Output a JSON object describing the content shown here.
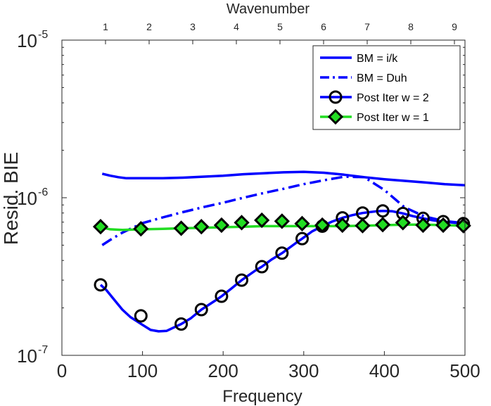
{
  "chart_data": {
    "type": "line",
    "title": "",
    "xlabel": "Frequency",
    "ylabel": "Resid. BIE",
    "top_xlabel": "Wavenumber",
    "xlim": [
      0,
      500
    ],
    "ylim": [
      1e-07,
      1e-05
    ],
    "yscale": "log",
    "x_ticks": [
      0,
      100,
      200,
      300,
      400,
      500
    ],
    "x_tick_labels": [
      "0",
      "100",
      "200",
      "300",
      "400",
      "500"
    ],
    "y_ticks": [
      1e-07,
      1e-06,
      1e-05
    ],
    "y_tick_labels": [
      {
        "base": "10",
        "exp": "-7"
      },
      {
        "base": "10",
        "exp": "-6"
      },
      {
        "base": "10",
        "exp": "-5"
      }
    ],
    "top_ticks": [
      1,
      2,
      3,
      4,
      5,
      6,
      7,
      8,
      9
    ],
    "top_tick_labels": [
      "1",
      "2",
      "3",
      "4",
      "5",
      "6",
      "7",
      "8",
      "9"
    ],
    "frequency_per_wavenumber": 54.1,
    "grid": false,
    "legend_position": "top-right",
    "series": [
      {
        "name": "BM = i/k",
        "color": "#0000ff",
        "line": "solid",
        "marker": "none",
        "x": [
          50,
          60,
          70,
          80,
          90,
          100,
          125,
          150,
          175,
          200,
          225,
          250,
          275,
          300,
          325,
          350,
          375,
          400,
          425,
          450,
          475,
          500
        ],
        "y": [
          1.42e-06,
          1.38e-06,
          1.35e-06,
          1.33e-06,
          1.33e-06,
          1.33e-06,
          1.33e-06,
          1.34e-06,
          1.36e-06,
          1.38e-06,
          1.41e-06,
          1.43e-06,
          1.45e-06,
          1.46e-06,
          1.44e-06,
          1.4e-06,
          1.35e-06,
          1.31e-06,
          1.28e-06,
          1.25e-06,
          1.22e-06,
          1.2e-06
        ]
      },
      {
        "name": "BM = Duh",
        "color": "#0000ff",
        "line": "dashdot",
        "marker": "none",
        "x": [
          50,
          60,
          75,
          100,
          125,
          150,
          175,
          200,
          225,
          250,
          275,
          300,
          325,
          350,
          375,
          400,
          425,
          450,
          475,
          500
        ],
        "y": [
          5e-07,
          5.4e-07,
          6e-07,
          6.9e-07,
          7.5e-07,
          8.1e-07,
          8.7e-07,
          9.3e-07,
          1e-06,
          1.07e-06,
          1.14e-06,
          1.22e-06,
          1.29e-06,
          1.36e-06,
          1.35e-06,
          1.12e-06,
          8.7e-07,
          7.6e-07,
          7.1e-07,
          6.9e-07
        ]
      },
      {
        "name": "Post Iter w = 2",
        "color": "#0000ff",
        "line": "solid",
        "marker": "circle",
        "x": [
          48,
          55,
          65,
          75,
          85,
          100,
          110,
          120,
          130,
          148,
          160,
          173,
          190,
          198,
          210,
          223,
          240,
          248,
          260,
          273,
          290,
          298,
          310,
          323,
          335,
          348,
          360,
          373,
          390,
          398,
          410,
          423,
          435,
          448,
          460,
          473,
          485,
          498
        ],
        "y": [
          2.8e-07,
          2.6e-07,
          2.25e-07,
          1.95e-07,
          1.75e-07,
          1.56e-07,
          1.45e-07,
          1.42e-07,
          1.43e-07,
          1.58e-07,
          1.72e-07,
          1.95e-07,
          2.22e-07,
          2.37e-07,
          2.65e-07,
          3e-07,
          3.45e-07,
          3.65e-07,
          4.05e-07,
          4.45e-07,
          5.15e-07,
          5.5e-07,
          6.1e-07,
          6.6e-07,
          7.05e-07,
          7.45e-07,
          7.75e-07,
          8e-07,
          8.2e-07,
          8.25e-07,
          8.2e-07,
          7.95e-07,
          7.65e-07,
          7.4e-07,
          7.2e-07,
          7.05e-07,
          6.95e-07,
          6.85e-07
        ],
        "markers_x": [
          48,
          98,
          148,
          173,
          198,
          223,
          248,
          273,
          298,
          323,
          348,
          373,
          398,
          423,
          448,
          473,
          498
        ],
        "markers_y": [
          2.8e-07,
          1.78e-07,
          1.58e-07,
          1.95e-07,
          2.37e-07,
          3e-07,
          3.65e-07,
          4.45e-07,
          5.5e-07,
          6.6e-07,
          7.45e-07,
          8e-07,
          8.25e-07,
          7.95e-07,
          7.4e-07,
          7.05e-07,
          6.85e-07
        ]
      },
      {
        "name": "Post Iter w = 1",
        "color": "#22dd22",
        "line": "solid",
        "marker": "diamond",
        "x": [
          48,
          60,
          75,
          100,
          125,
          150,
          175,
          200,
          225,
          250,
          275,
          300,
          325,
          350,
          375,
          400,
          425,
          450,
          475,
          500
        ],
        "y": [
          6.5e-07,
          6.3e-07,
          6.25e-07,
          6.3e-07,
          6.35e-07,
          6.4e-07,
          6.45e-07,
          6.5e-07,
          6.55e-07,
          6.6e-07,
          6.6e-07,
          6.6e-07,
          6.6e-07,
          6.6e-07,
          6.65e-07,
          6.7e-07,
          6.75e-07,
          6.75e-07,
          6.7e-07,
          6.65e-07
        ],
        "markers_x": [
          48,
          98,
          148,
          173,
          198,
          223,
          248,
          273,
          298,
          323,
          348,
          373,
          398,
          423,
          448,
          473,
          498
        ],
        "markers_y": [
          6.55e-07,
          6.35e-07,
          6.4e-07,
          6.55e-07,
          6.7e-07,
          6.95e-07,
          7.2e-07,
          7.1e-07,
          6.85e-07,
          6.7e-07,
          6.7e-07,
          6.65e-07,
          6.75e-07,
          6.95e-07,
          6.7e-07,
          6.7e-07,
          6.65e-07
        ]
      }
    ]
  }
}
